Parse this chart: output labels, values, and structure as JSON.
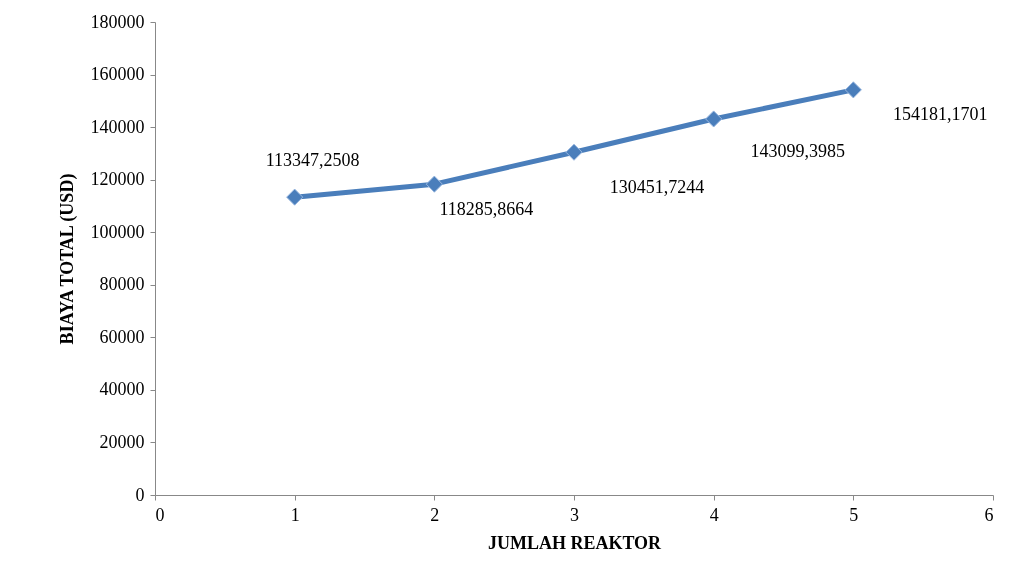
{
  "chart_data": {
    "type": "line",
    "xlabel": "JUMLAH REAKTOR",
    "ylabel": "BIAYA TOTAL (USD)",
    "x": [
      1,
      2,
      3,
      4,
      5
    ],
    "series": [
      {
        "color": "#4a7ebb",
        "values": [
          113347.2508,
          118285.8664,
          130451.7244,
          143099.3985,
          154181.1701
        ],
        "value_labels": [
          "113347,2508",
          "118285,8664",
          "130451,7244",
          "143099,3985",
          "154181,1701"
        ]
      }
    ],
    "xlim": [
      0,
      6
    ],
    "xticks": [
      0,
      1,
      2,
      3,
      4,
      5,
      6
    ],
    "ylim": [
      0,
      180000
    ],
    "yticks": [
      0,
      20000,
      40000,
      60000,
      80000,
      100000,
      120000,
      140000,
      160000,
      180000
    ],
    "grid": false,
    "marker": "diamond",
    "line_style": "solid"
  }
}
